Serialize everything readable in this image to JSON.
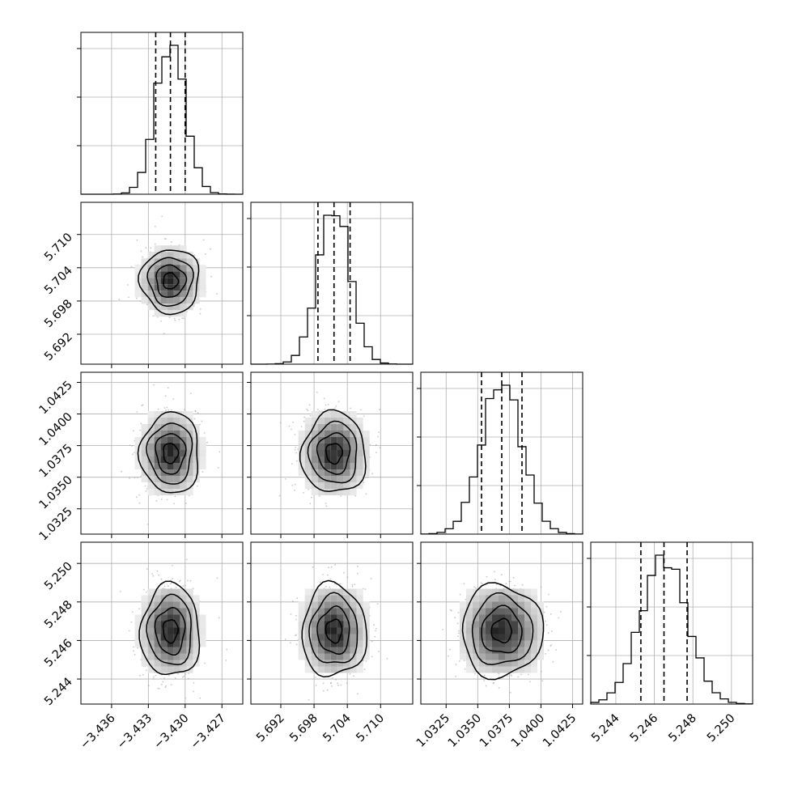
{
  "chart_data": {
    "type": "corner",
    "grid": true,
    "parameters": [
      {
        "median": -3.4312,
        "sigma": 0.0012,
        "lim": [
          -3.4385,
          -3.4253
        ],
        "ticks": [
          -3.436,
          -3.433,
          -3.43,
          -3.427
        ],
        "tick_labels": [
          "−3.436",
          "−3.433",
          "−3.430",
          "−3.427"
        ],
        "quantiles": [
          -3.4324,
          -3.4312,
          -3.43
        ]
      },
      {
        "median": 5.7016,
        "sigma": 0.0029,
        "lim": [
          5.6866,
          5.7158
        ],
        "ticks": [
          5.692,
          5.698,
          5.704,
          5.71
        ],
        "tick_labels": [
          "5.692",
          "5.698",
          "5.704",
          "5.710"
        ],
        "quantiles": [
          5.6987,
          5.7016,
          5.7045
        ]
      },
      {
        "median": 1.0369,
        "sigma": 0.0016,
        "lim": [
          1.0305,
          1.0433
        ],
        "ticks": [
          1.0325,
          1.035,
          1.0375,
          1.04,
          1.0425
        ],
        "tick_labels": [
          "1.0325",
          "1.0350",
          "1.0375",
          "1.0400",
          "1.0425"
        ],
        "quantiles": [
          1.0353,
          1.0369,
          1.0385
        ]
      },
      {
        "median": 5.2465,
        "sigma": 0.0012,
        "lim": [
          5.2427,
          5.2511
        ],
        "ticks": [
          5.244,
          5.246,
          5.248,
          5.25
        ],
        "tick_labels": [
          "5.244",
          "5.246",
          "5.248",
          "5.250"
        ],
        "quantiles": [
          5.2453,
          5.2465,
          5.2477
        ]
      }
    ]
  }
}
